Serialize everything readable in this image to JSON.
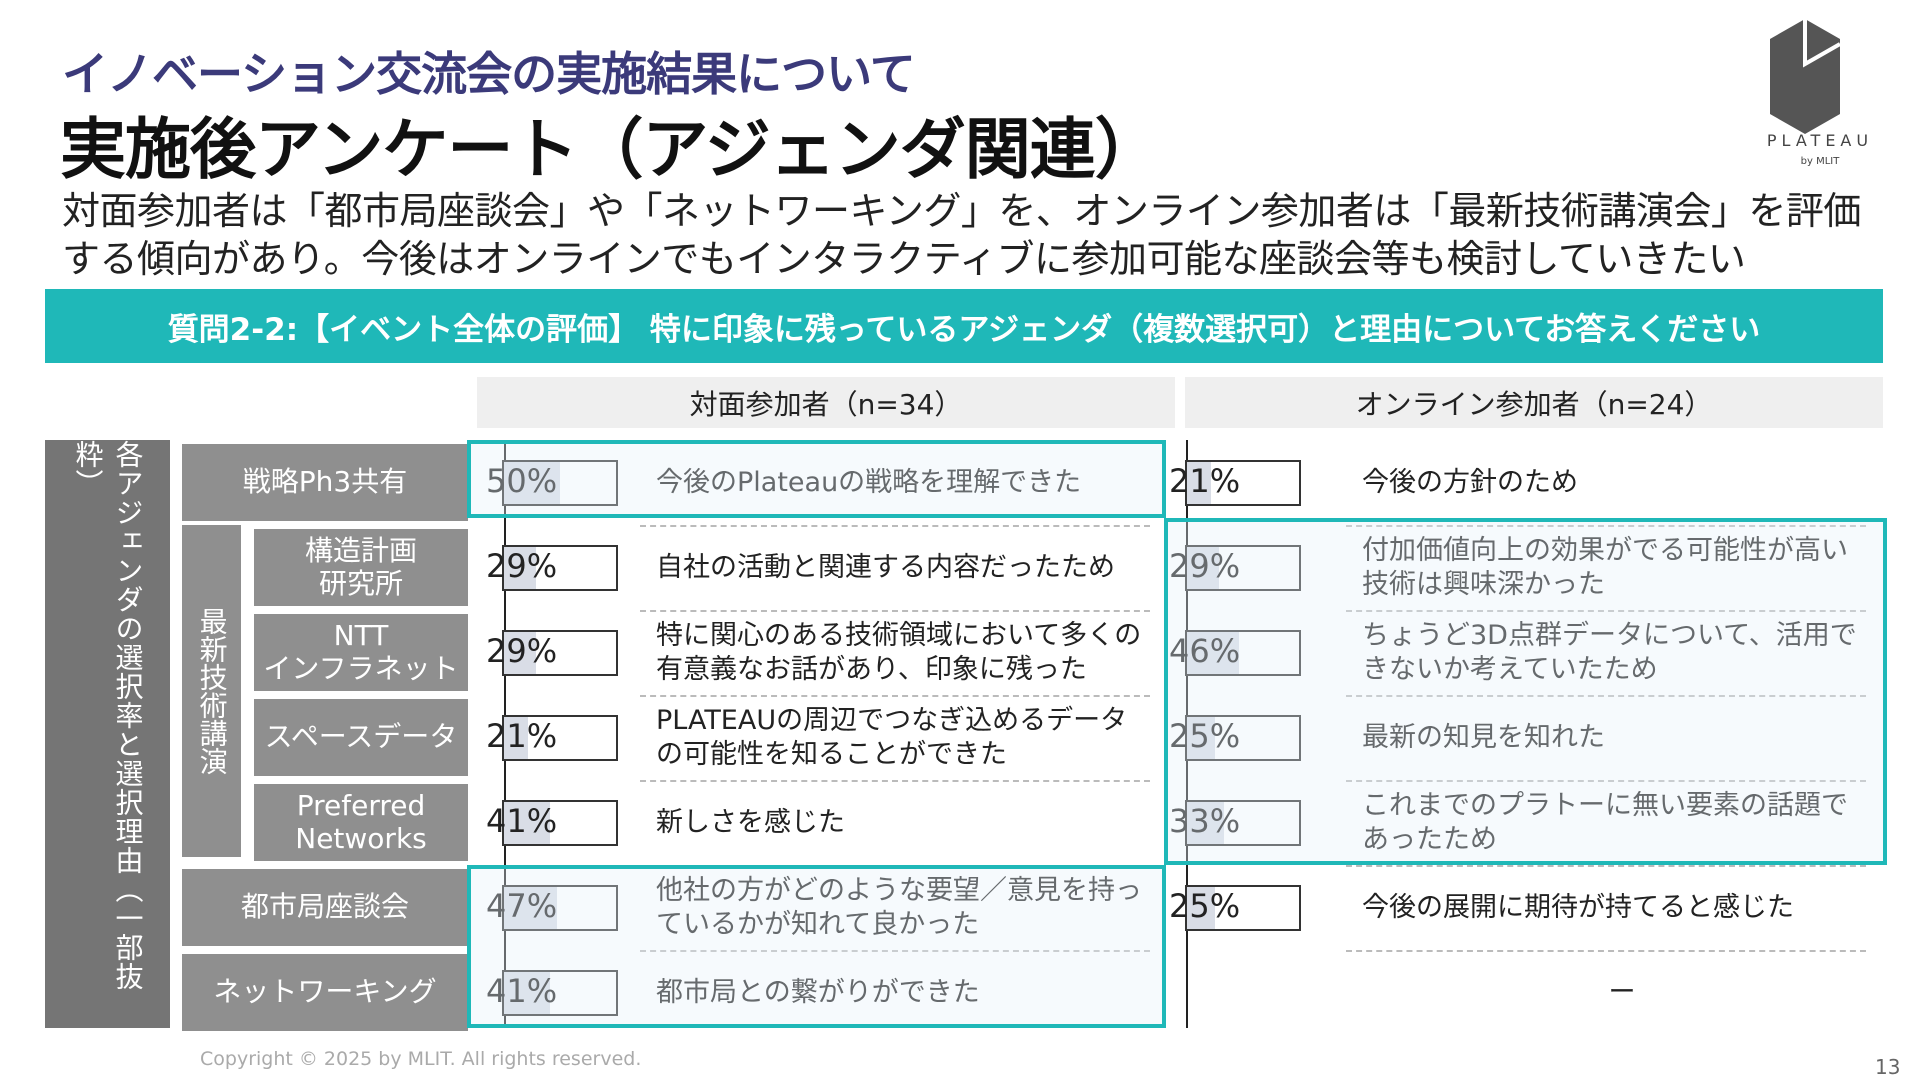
{
  "header": {
    "subtitle": "イノベーション交流会の実施結果について",
    "title": "実施後アンケート（アジェンダ関連）",
    "description": [
      "対面参加者は「都市局座談会」や「ネットワーキング」を、オンライン参加者は「最新技術講演会」を評価",
      "する傾向があり。今後はオンラインでもインタラクティブに参加可能な座談会等も検討していきたい"
    ]
  },
  "logo": {
    "name": "PLATEAU",
    "by": "by MLIT"
  },
  "question": "質問2-2:【イベント全体の評価】 特に印象に残っているアジェンダ（複数選択可）と理由についてお答えください",
  "table": {
    "side_label": "各アジェンダの選択率と選択理由（一部抜粋）",
    "group_label": "最新技術講演",
    "columns": [
      "対面参加者（n=34）",
      "オンライン参加者（n=24）"
    ],
    "rows": [
      {
        "name": "戦略Ph3共有",
        "offline": {
          "value": 50,
          "label": "50%",
          "reason": "今後のPlateauの戦略を理解できた"
        },
        "online": {
          "value": 21,
          "label": "21%",
          "reason": "今後の方針のため"
        }
      },
      {
        "name": "構造計画\n研究所",
        "offline": {
          "value": 29,
          "label": "29%",
          "reason": "自社の活動と関連する内容だったため"
        },
        "online": {
          "value": 29,
          "label": "29%",
          "reason": "付加価値向上の効果がでる可能性が高い\n技術は興味深かった"
        }
      },
      {
        "name": "NTT\nインフラネット",
        "offline": {
          "value": 29,
          "label": "29%",
          "reason": "特に関心のある技術領域において多くの\n有意義なお話があり、印象に残った"
        },
        "online": {
          "value": 46,
          "label": "46%",
          "reason": "ちょうど3D点群データについて、活用で\nきないか考えていたため"
        }
      },
      {
        "name": "スペースデータ",
        "offline": {
          "value": 21,
          "label": "21%",
          "reason": "PLATEAUの周辺でつなぎ込めるデータ\nの可能性を知ることができた"
        },
        "online": {
          "value": 25,
          "label": "25%",
          "reason": "最新の知見を知れた"
        }
      },
      {
        "name": "Preferred\nNetworks",
        "offline": {
          "value": 41,
          "label": "41%",
          "reason": "新しさを感じた"
        },
        "online": {
          "value": 33,
          "label": "33%",
          "reason": "これまでのプラトーに無い要素の話題で\nあったため"
        }
      },
      {
        "name": "都市局座談会",
        "offline": {
          "value": 47,
          "label": "47%",
          "reason": "他社の方がどのような要望／意見を持っ\nているかが知れて良かった"
        },
        "online": {
          "value": 25,
          "label": "25%",
          "reason": "今後の展開に期待が持てると感じた"
        }
      },
      {
        "name": "ネットワーキング",
        "offline": {
          "value": 41,
          "label": "41%",
          "reason": "都市局との繋がりができた"
        },
        "online": {
          "value": null,
          "label": null,
          "reason": "ー"
        }
      }
    ]
  },
  "footer": {
    "copyright": "Copyright © 2025 by MLIT. All rights reserved.",
    "page": "13"
  }
}
